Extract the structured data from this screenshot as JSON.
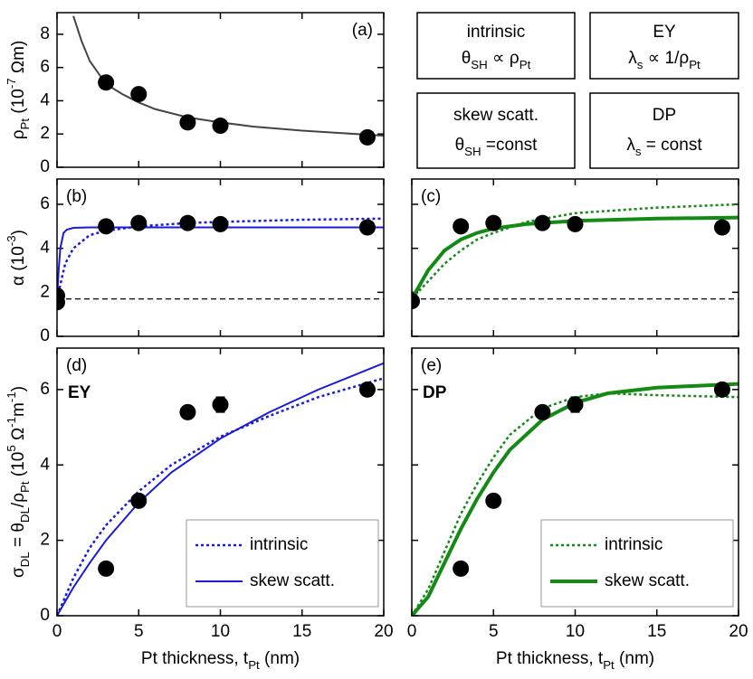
{
  "chart_data": [
    {
      "type": "line",
      "panel_label": "(a)",
      "y_label": [
        {
          "text": "ρ"
        },
        {
          "text": "Pt",
          "shift": "sub"
        },
        {
          "text": " (10"
        },
        {
          "text": "-7",
          "shift": "super"
        },
        {
          "text": " Ωm)"
        }
      ],
      "xlim": [
        0,
        20
      ],
      "xticks": [
        0,
        5,
        10,
        15,
        20
      ],
      "xtick_labels": false,
      "ylim": [
        0,
        9.3
      ],
      "yticks": [
        0,
        2,
        4,
        6,
        8
      ],
      "ytick_labels": true,
      "series": [
        {
          "kind": "line",
          "style": "solid",
          "color": "#444444",
          "width": 2,
          "x": [
            1,
            1.5,
            2,
            3,
            4,
            5,
            6,
            8,
            10,
            12,
            15,
            20
          ],
          "values": [
            9.1,
            7.6,
            6.4,
            5.0,
            4.4,
            3.9,
            3.5,
            3.0,
            2.7,
            2.45,
            2.2,
            1.9
          ]
        },
        {
          "kind": "points",
          "color": "#000000",
          "x": [
            3,
            5,
            8,
            10,
            19
          ],
          "values": [
            5.1,
            4.4,
            2.7,
            2.5,
            1.8
          ]
        }
      ]
    },
    {
      "type": "line",
      "panel_label": "(b)",
      "y_label": [
        {
          "text": "α (10"
        },
        {
          "text": "-3",
          "shift": "super"
        },
        {
          "text": ")"
        }
      ],
      "xlim": [
        0,
        20
      ],
      "xticks": [
        0,
        5,
        10,
        15,
        20
      ],
      "xtick_labels": false,
      "ylim": [
        0,
        7.15
      ],
      "yticks": [
        0,
        2,
        4,
        6
      ],
      "ytick_labels": true,
      "series": [
        {
          "kind": "line",
          "style": "dashed",
          "color": "#000000",
          "width": 1.2,
          "x": [
            0,
            20
          ],
          "values": [
            1.7,
            1.7
          ]
        },
        {
          "kind": "line",
          "style": "dotted",
          "color": "#1a1adb",
          "width": 2.5,
          "x": [
            0,
            0.5,
            1,
            2,
            3,
            5,
            8,
            10,
            15,
            20
          ],
          "values": [
            1.7,
            3.3,
            4.0,
            4.6,
            4.8,
            5.0,
            5.15,
            5.2,
            5.3,
            5.35
          ]
        },
        {
          "kind": "line",
          "style": "solid",
          "color": "#1a1adb",
          "width": 2,
          "x": [
            0,
            0.1,
            0.2,
            0.4,
            0.6,
            1,
            2,
            20
          ],
          "values": [
            1.7,
            3.0,
            4.0,
            4.7,
            4.85,
            4.93,
            4.95,
            4.95
          ]
        },
        {
          "kind": "points",
          "color": "#000000",
          "x": [
            0,
            0,
            3,
            5,
            8,
            10,
            19
          ],
          "values": [
            1.85,
            1.55,
            5.0,
            5.15,
            5.15,
            5.1,
            4.95
          ]
        }
      ]
    },
    {
      "type": "line",
      "panel_label": "(c)",
      "xlim": [
        0,
        20
      ],
      "xticks": [
        0,
        5,
        10,
        15,
        20
      ],
      "xtick_labels": false,
      "ylim": [
        0,
        7.15
      ],
      "yticks": [
        0,
        2,
        4,
        6
      ],
      "ytick_labels": false,
      "series": [
        {
          "kind": "line",
          "style": "dashed",
          "color": "#000000",
          "width": 1.2,
          "x": [
            0,
            20
          ],
          "values": [
            1.7,
            1.7
          ]
        },
        {
          "kind": "line",
          "style": "dotted",
          "color": "#138a13",
          "width": 2.5,
          "x": [
            0,
            1,
            2,
            3,
            4,
            5,
            7,
            10,
            15,
            20
          ],
          "values": [
            1.7,
            2.5,
            3.3,
            3.9,
            4.4,
            4.7,
            5.2,
            5.6,
            5.85,
            6.0
          ]
        },
        {
          "kind": "line",
          "style": "solid",
          "color": "#138a13",
          "width": 4,
          "x": [
            0,
            1,
            2,
            3,
            4,
            5,
            7,
            10,
            15,
            20
          ],
          "values": [
            1.7,
            3.0,
            3.9,
            4.4,
            4.7,
            4.9,
            5.1,
            5.25,
            5.35,
            5.4
          ]
        },
        {
          "kind": "points",
          "color": "#000000",
          "x": [
            0,
            3,
            5,
            8,
            10,
            19
          ],
          "values": [
            1.6,
            5.0,
            5.15,
            5.15,
            5.1,
            4.95
          ]
        }
      ]
    },
    {
      "type": "line",
      "panel_label": "(d)",
      "annotation": {
        "text": "EY",
        "color": "#1a1adb"
      },
      "y_label": [
        {
          "text": "σ"
        },
        {
          "text": "DL",
          "shift": "sub"
        },
        {
          "text": " = θ"
        },
        {
          "text": "DL",
          "shift": "sub"
        },
        {
          "text": "/ρ"
        },
        {
          "text": "Pt",
          "shift": "sub"
        },
        {
          "text": " (10"
        },
        {
          "text": "5",
          "shift": "super"
        },
        {
          "text": " Ω"
        },
        {
          "text": "-1",
          "shift": "super"
        },
        {
          "text": "m"
        },
        {
          "text": "-1",
          "shift": "super"
        },
        {
          "text": ")"
        }
      ],
      "x_label": [
        {
          "text": "Pt thickness, t"
        },
        {
          "text": "Pt",
          "shift": "sub"
        },
        {
          "text": " (nm)"
        }
      ],
      "xlim": [
        0,
        20
      ],
      "xticks": [
        0,
        5,
        10,
        15,
        20
      ],
      "xtick_labels": true,
      "ylim": [
        0,
        7.1
      ],
      "yticks": [
        0,
        2,
        4,
        6
      ],
      "ytick_labels": true,
      "legend": "lower right",
      "series": [
        {
          "kind": "line",
          "name": "intrinsic",
          "style": "dotted",
          "color": "#1a1adb",
          "width": 2.5,
          "x": [
            0,
            1,
            2,
            3,
            5,
            7,
            10,
            13,
            16,
            20
          ],
          "values": [
            0,
            1.0,
            1.8,
            2.4,
            3.3,
            4.0,
            4.75,
            5.3,
            5.8,
            6.3
          ]
        },
        {
          "kind": "line",
          "name": "skew scatt.",
          "style": "solid",
          "color": "#1a1adb",
          "width": 2,
          "x": [
            0,
            1,
            2,
            3,
            5,
            7,
            10,
            13,
            16,
            20
          ],
          "values": [
            0,
            0.75,
            1.4,
            2.0,
            3.0,
            3.8,
            4.7,
            5.4,
            6.0,
            6.7
          ]
        },
        {
          "kind": "points",
          "color": "#000000",
          "x": [
            3,
            5,
            8,
            10,
            19
          ],
          "values": [
            1.25,
            3.05,
            5.4,
            5.6,
            6.0
          ],
          "errors": [
            null,
            null,
            null,
            0.2,
            null
          ]
        }
      ]
    },
    {
      "type": "line",
      "panel_label": "(e)",
      "annotation": {
        "text": "DP",
        "color": "#138a13"
      },
      "x_label": [
        {
          "text": "Pt thickness, t"
        },
        {
          "text": "Pt",
          "shift": "sub"
        },
        {
          "text": " (nm)"
        }
      ],
      "xlim": [
        0,
        20
      ],
      "xticks": [
        0,
        5,
        10,
        15,
        20
      ],
      "xtick_labels": true,
      "ylim": [
        0,
        7.1
      ],
      "yticks": [
        0,
        2,
        4,
        6
      ],
      "ytick_labels": false,
      "legend": "lower right",
      "series": [
        {
          "kind": "line",
          "name": "intrinsic",
          "style": "dotted",
          "color": "#138a13",
          "width": 2.5,
          "x": [
            0,
            1,
            2,
            3,
            4,
            5,
            6,
            8,
            10,
            12,
            15,
            20
          ],
          "values": [
            0,
            0.7,
            1.7,
            2.7,
            3.5,
            4.2,
            4.8,
            5.5,
            5.8,
            5.9,
            5.85,
            5.8
          ]
        },
        {
          "kind": "line",
          "name": "skew scatt.",
          "style": "solid",
          "color": "#138a13",
          "width": 4,
          "x": [
            0,
            1,
            2,
            3,
            4,
            5,
            6,
            8,
            10,
            12,
            15,
            20
          ],
          "values": [
            0,
            0.5,
            1.4,
            2.3,
            3.1,
            3.8,
            4.4,
            5.2,
            5.65,
            5.9,
            6.05,
            6.15
          ]
        },
        {
          "kind": "points",
          "color": "#000000",
          "x": [
            3,
            5,
            8,
            10,
            19
          ],
          "values": [
            1.25,
            3.05,
            5.4,
            5.6,
            6.0
          ],
          "errors": [
            null,
            null,
            null,
            0.2,
            null
          ]
        }
      ]
    }
  ],
  "boxes": [
    {
      "color": "#000000",
      "lines": [
        [
          {
            "text": "intrinsic"
          }
        ],
        [
          {
            "text": "θ"
          },
          {
            "text": "SH",
            "shift": "sub"
          },
          {
            "text": " ∝ ρ"
          },
          {
            "text": "Pt",
            "shift": "sub"
          }
        ]
      ]
    },
    {
      "color": "#1a1adb",
      "lines": [
        [
          {
            "text": "EY"
          }
        ],
        [
          {
            "text": "λ"
          },
          {
            "text": "s",
            "shift": "sub"
          },
          {
            "text": " ∝ 1/ρ"
          },
          {
            "text": "Pt",
            "shift": "sub"
          }
        ]
      ]
    },
    {
      "color": "#000000",
      "lines": [
        [
          {
            "text": "skew scatt."
          }
        ],
        [
          {
            "text": "θ"
          },
          {
            "text": "SH",
            "shift": "sub"
          },
          {
            "text": " =const"
          }
        ]
      ]
    },
    {
      "color": "#138a13",
      "lines": [
        [
          {
            "text": "DP"
          }
        ],
        [
          {
            "text": "λ"
          },
          {
            "text": "s",
            "shift": "sub"
          },
          {
            "text": " = const"
          }
        ]
      ]
    }
  ]
}
